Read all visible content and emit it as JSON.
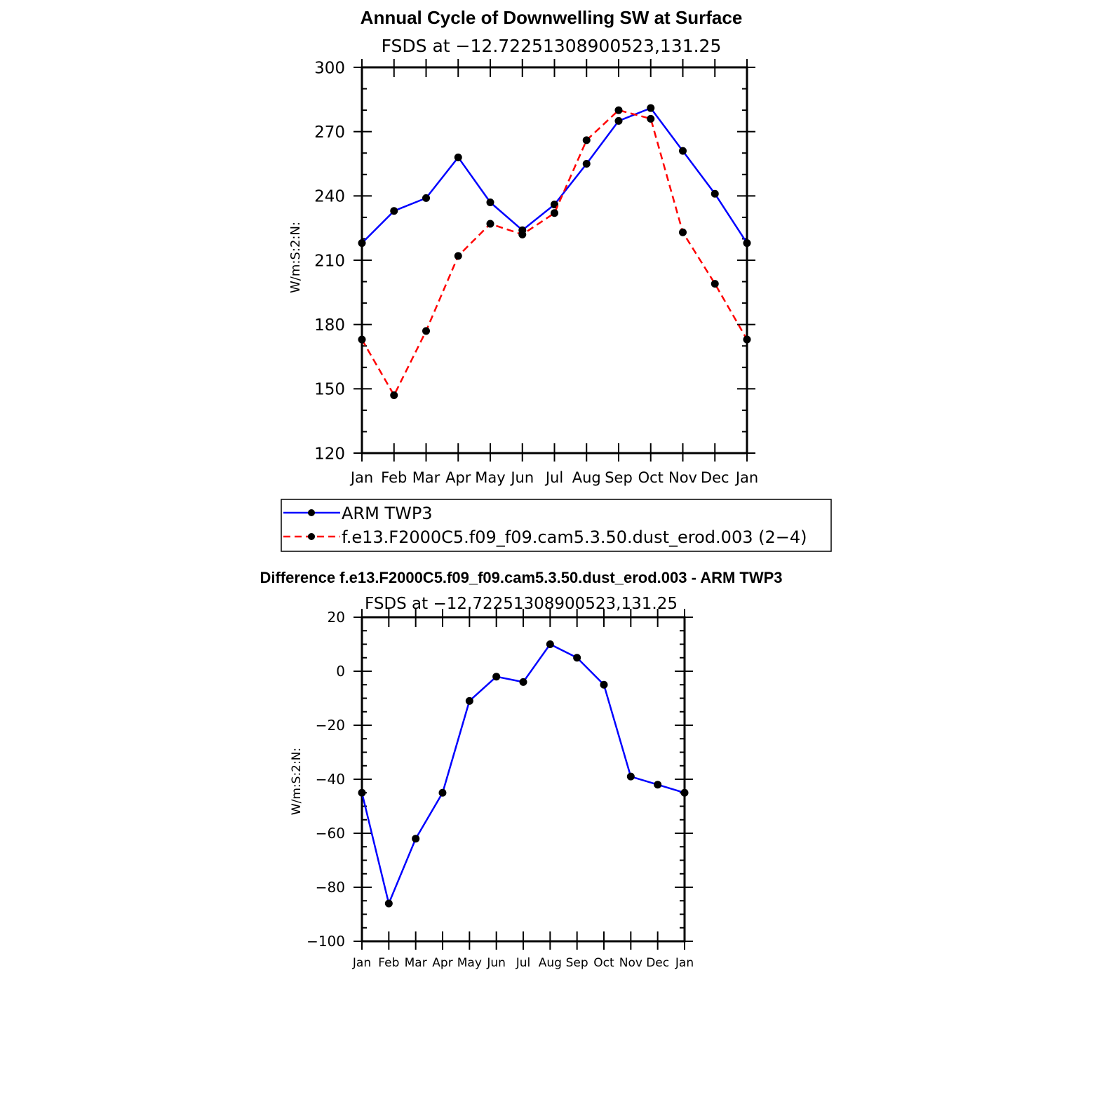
{
  "chart_data": [
    {
      "type": "line",
      "title": "Annual Cycle of Downwelling SW at Surface",
      "subtitle": "FSDS at −12.72251308900523,131.25",
      "xlabel": "",
      "ylabel": "W/m:S:2:N:",
      "ylim": [
        120,
        300
      ],
      "y_ticks": [
        "120",
        "150",
        "180",
        "210",
        "240",
        "270",
        "300"
      ],
      "categories": [
        "Jan",
        "Feb",
        "Mar",
        "Apr",
        "May",
        "Jun",
        "Jul",
        "Aug",
        "Sep",
        "Oct",
        "Nov",
        "Dec",
        "Jan"
      ],
      "legend_position": "below",
      "series": [
        {
          "name": "ARM TWP3",
          "color": "#0000ff",
          "dash": "solid",
          "values": [
            218,
            233,
            239,
            258,
            237,
            224,
            236,
            255,
            275,
            281,
            261,
            241,
            218
          ]
        },
        {
          "name": "f.e13.F2000C5.f09_f09.cam5.3.50.dust_erod.003 (2−4)",
          "color": "#ff0000",
          "dash": "dashed",
          "values": [
            173,
            147,
            177,
            212,
            227,
            222,
            232,
            266,
            280,
            276,
            223,
            199,
            173
          ]
        }
      ]
    },
    {
      "type": "line",
      "title": "Difference f.e13.F2000C5.f09_f09.cam5.3.50.dust_erod.003 - ARM TWP3",
      "subtitle": "FSDS at −12.72251308900523,131.25",
      "xlabel": "",
      "ylabel": "W/m:S:2:N:",
      "ylim": [
        -100,
        20
      ],
      "y_ticks": [
        "−100",
        "−80",
        "−60",
        "−40",
        "−20",
        "0",
        "20"
      ],
      "categories": [
        "Jan",
        "Feb",
        "Mar",
        "Apr",
        "May",
        "Jun",
        "Jul",
        "Aug",
        "Sep",
        "Oct",
        "Nov",
        "Dec",
        "Jan"
      ],
      "series": [
        {
          "color": "#0000ff",
          "dash": "solid",
          "values": [
            -45,
            -86,
            -62,
            -45,
            -11,
            -2,
            -4,
            10,
            5,
            -5,
            -39,
            -42,
            -45
          ]
        }
      ]
    }
  ]
}
